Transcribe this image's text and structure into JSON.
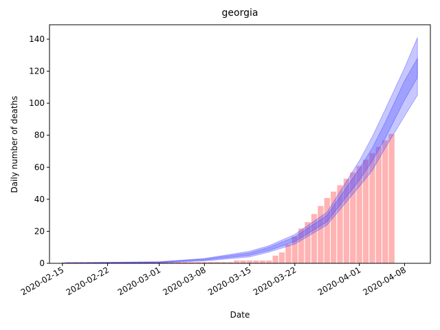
{
  "chart_data": {
    "type": "bar",
    "title": "georgia",
    "x_label": "Date",
    "y_label": "Daily number of deaths",
    "categories": [
      "2020-02-16",
      "2020-02-17",
      "2020-02-18",
      "2020-02-19",
      "2020-02-20",
      "2020-02-21",
      "2020-02-22",
      "2020-02-23",
      "2020-02-24",
      "2020-02-25",
      "2020-02-26",
      "2020-02-27",
      "2020-02-28",
      "2020-02-29",
      "2020-03-01",
      "2020-03-02",
      "2020-03-03",
      "2020-03-04",
      "2020-03-05",
      "2020-03-06",
      "2020-03-07",
      "2020-03-08",
      "2020-03-09",
      "2020-03-10",
      "2020-03-11",
      "2020-03-12",
      "2020-03-13",
      "2020-03-14",
      "2020-03-15",
      "2020-03-16",
      "2020-03-17",
      "2020-03-18",
      "2020-03-19",
      "2020-03-20",
      "2020-03-21",
      "2020-03-22",
      "2020-03-23",
      "2020-03-24",
      "2020-03-25",
      "2020-03-26",
      "2020-03-27",
      "2020-03-28",
      "2020-03-29",
      "2020-03-30",
      "2020-03-31",
      "2020-04-01",
      "2020-04-02",
      "2020-04-03",
      "2020-04-04",
      "2020-04-05",
      "2020-04-06"
    ],
    "values": [
      1,
      1,
      1,
      1,
      1,
      1,
      1,
      1,
      1,
      1,
      1,
      1,
      1,
      1,
      1,
      1,
      1,
      1,
      1,
      1,
      1,
      1,
      1,
      1,
      1,
      1,
      2,
      2,
      2,
      2,
      2,
      2,
      5,
      7,
      12,
      17,
      22,
      26,
      31,
      36,
      41,
      45,
      49,
      53,
      57,
      61,
      65,
      69,
      73,
      77,
      81
    ],
    "color": "#ff9999",
    "bands": [
      {
        "color": "#4444ff",
        "x": [
          "2020-02-15",
          "2020-03-01",
          "2020-03-08",
          "2020-03-15",
          "2020-03-18",
          "2020-03-22",
          "2020-03-27",
          "2020-04-01",
          "2020-04-03",
          "2020-04-05",
          "2020-04-08",
          "2020-04-10"
        ],
        "lower": [
          0,
          0.3,
          1.5,
          4,
          7,
          12,
          24,
          48,
          58,
          72,
          92,
          105
        ],
        "upper": [
          0.3,
          1,
          3,
          7.5,
          11,
          18,
          32,
          64,
          79,
          96,
          122,
          141
        ]
      },
      {
        "color": "#4444ff",
        "x": [
          "2020-02-15",
          "2020-03-01",
          "2020-03-08",
          "2020-03-15",
          "2020-03-18",
          "2020-03-22",
          "2020-03-27",
          "2020-04-01",
          "2020-04-03",
          "2020-04-05",
          "2020-04-08",
          "2020-04-10"
        ],
        "lower": [
          0,
          0.5,
          2,
          5,
          8,
          13.5,
          26,
          52,
          64,
          78,
          102,
          116
        ],
        "upper": [
          0.2,
          0.8,
          2.7,
          6.5,
          10,
          16.5,
          30,
          59,
          72,
          88,
          114,
          128
        ]
      }
    ],
    "xlim": [
      "2020-02-13",
      "2020-04-12"
    ],
    "xticks": [
      "2020-02-15",
      "2020-02-22",
      "2020-03-01",
      "2020-03-08",
      "2020-03-15",
      "2020-03-22",
      "2020-04-01",
      "2020-04-08"
    ],
    "ylim": [
      0,
      149
    ],
    "yticks": [
      0,
      20,
      40,
      60,
      80,
      100,
      120,
      140
    ]
  }
}
